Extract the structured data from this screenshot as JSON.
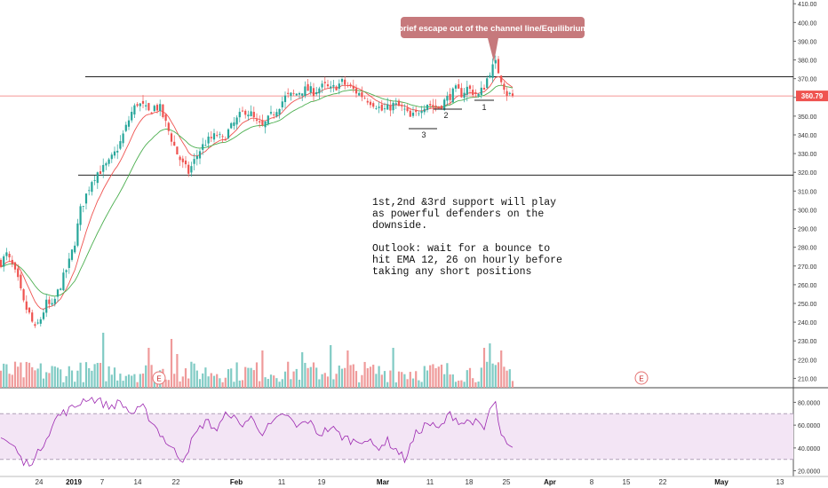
{
  "chart_data": {
    "type": "candlestick",
    "price_axis": {
      "ylim": [
        205,
        412
      ],
      "ticks": [
        "410.00",
        "400.00",
        "390.00",
        "380.00",
        "370.00",
        "360.00",
        "350.00",
        "340.00",
        "330.00",
        "320.00",
        "310.00",
        "300.00",
        "290.00",
        "280.00",
        "270.00",
        "260.00",
        "250.00",
        "240.00",
        "230.00",
        "220.00",
        "210.00"
      ],
      "tick_values": [
        410,
        400,
        390,
        380,
        370,
        360,
        350,
        340,
        330,
        320,
        310,
        300,
        290,
        280,
        270,
        260,
        250,
        240,
        230,
        220,
        210
      ]
    },
    "current_price": {
      "label": "360.79",
      "value": 360.79,
      "color": "#ef5350"
    },
    "horizontal_levels": [
      371,
      318.5
    ],
    "x_axis": {
      "labels": [
        "24",
        "2019",
        "7",
        "14",
        "22",
        "Feb",
        "11",
        "19",
        "Mar",
        "11",
        "18",
        "25",
        "Apr",
        "8",
        "15",
        "22",
        "May",
        "13"
      ],
      "bold_labels": [
        "2019",
        "Feb",
        "Mar",
        "Apr",
        "May"
      ]
    },
    "price_key_points": [
      [
        0,
        272
      ],
      [
        2,
        276
      ],
      [
        4,
        270
      ],
      [
        6,
        262
      ],
      [
        8,
        250
      ],
      [
        10,
        244
      ],
      [
        12,
        236
      ],
      [
        14,
        242
      ],
      [
        16,
        250
      ],
      [
        18,
        248
      ],
      [
        20,
        256
      ],
      [
        22,
        264
      ],
      [
        24,
        272
      ],
      [
        26,
        283
      ],
      [
        28,
        300
      ],
      [
        30,
        308
      ],
      [
        32,
        316
      ],
      [
        34,
        320
      ],
      [
        36,
        322
      ],
      [
        38,
        325
      ],
      [
        40,
        330
      ],
      [
        42,
        336
      ],
      [
        44,
        344
      ],
      [
        46,
        352
      ],
      [
        48,
        357
      ],
      [
        50,
        355
      ],
      [
        52,
        352
      ],
      [
        54,
        355
      ],
      [
        56,
        354
      ],
      [
        58,
        346
      ],
      [
        60,
        338
      ],
      [
        62,
        330
      ],
      [
        64,
        324
      ],
      [
        66,
        320
      ],
      [
        68,
        326
      ],
      [
        70,
        332
      ],
      [
        72,
        336
      ],
      [
        74,
        338
      ],
      [
        76,
        340
      ],
      [
        78,
        337
      ],
      [
        80,
        342
      ],
      [
        82,
        346
      ],
      [
        84,
        350
      ],
      [
        86,
        353
      ],
      [
        88,
        351
      ],
      [
        90,
        346
      ],
      [
        92,
        344
      ],
      [
        94,
        348
      ],
      [
        96,
        352
      ],
      [
        98,
        356
      ],
      [
        100,
        360
      ],
      [
        102,
        361
      ],
      [
        104,
        362
      ],
      [
        106,
        364
      ],
      [
        108,
        364
      ],
      [
        110,
        363
      ],
      [
        112,
        365
      ],
      [
        114,
        366
      ],
      [
        116,
        364
      ],
      [
        118,
        366
      ],
      [
        120,
        368
      ],
      [
        122,
        366
      ],
      [
        124,
        364
      ],
      [
        126,
        362
      ],
      [
        128,
        360
      ],
      [
        130,
        358
      ],
      [
        132,
        356
      ],
      [
        134,
        353
      ],
      [
        136,
        354
      ],
      [
        138,
        356
      ],
      [
        140,
        355
      ],
      [
        142,
        353
      ],
      [
        144,
        349
      ],
      [
        146,
        351
      ],
      [
        148,
        355
      ],
      [
        150,
        357
      ],
      [
        152,
        355
      ],
      [
        154,
        355
      ],
      [
        156,
        358
      ],
      [
        158,
        361
      ],
      [
        160,
        364
      ],
      [
        162,
        362
      ],
      [
        164,
        365
      ],
      [
        166,
        363
      ],
      [
        168,
        361
      ],
      [
        170,
        366
      ],
      [
        172,
        374
      ],
      [
        174,
        378
      ],
      [
        176,
        370
      ],
      [
        178,
        362
      ],
      [
        180,
        361
      ]
    ],
    "volume": {
      "seed": 7,
      "spikes": [
        [
          36,
          62
        ],
        [
          52,
          45
        ],
        [
          60,
          55
        ],
        [
          62,
          38
        ],
        [
          92,
          42
        ],
        [
          106,
          40
        ],
        [
          116,
          48
        ],
        [
          122,
          42
        ],
        [
          138,
          45
        ],
        [
          170,
          45
        ],
        [
          172,
          50
        ],
        [
          176,
          42
        ]
      ]
    },
    "rsi": {
      "labels": [
        "80.0000",
        "60.0000",
        "40.0000",
        "20.0000"
      ],
      "values": [
        80,
        60,
        40,
        20
      ],
      "band_upper": 70,
      "band_lower": 30,
      "ylim": [
        15,
        92
      ],
      "key_points": [
        [
          0,
          50
        ],
        [
          5,
          40
        ],
        [
          8,
          26
        ],
        [
          12,
          30
        ],
        [
          16,
          50
        ],
        [
          20,
          68
        ],
        [
          26,
          76
        ],
        [
          30,
          84
        ],
        [
          34,
          82
        ],
        [
          38,
          76
        ],
        [
          42,
          80
        ],
        [
          46,
          70
        ],
        [
          50,
          75
        ],
        [
          54,
          60
        ],
        [
          58,
          46
        ],
        [
          62,
          34
        ],
        [
          64,
          30
        ],
        [
          68,
          50
        ],
        [
          72,
          64
        ],
        [
          76,
          56
        ],
        [
          80,
          72
        ],
        [
          84,
          60
        ],
        [
          88,
          66
        ],
        [
          92,
          54
        ],
        [
          96,
          62
        ],
        [
          100,
          70
        ],
        [
          104,
          58
        ],
        [
          108,
          64
        ],
        [
          112,
          52
        ],
        [
          116,
          58
        ],
        [
          120,
          50
        ],
        [
          124,
          46
        ],
        [
          128,
          48
        ],
        [
          132,
          40
        ],
        [
          136,
          46
        ],
        [
          140,
          36
        ],
        [
          142,
          30
        ],
        [
          146,
          52
        ],
        [
          150,
          62
        ],
        [
          154,
          56
        ],
        [
          158,
          70
        ],
        [
          162,
          62
        ],
        [
          166,
          64
        ],
        [
          170,
          56
        ],
        [
          172,
          74
        ],
        [
          174,
          78
        ],
        [
          176,
          50
        ],
        [
          178,
          42
        ],
        [
          180,
          38
        ]
      ]
    },
    "earnings_markers": [
      "E",
      "E"
    ],
    "support_labels": [
      "1",
      "2",
      "3"
    ],
    "callout": "brief escape out of the channel line/Equilibrium",
    "annotation_lines": [
      "1st,2nd &3rd support will play",
      "as powerful defenders on the",
      "downside.",
      "",
      "Outlook: wait for a bounce to",
      "hit EMA 12, 26 on hourly before",
      "taking any short positions"
    ],
    "colors": {
      "up": "#26a69a",
      "down": "#ef5350",
      "vol_up": "#80cbc4",
      "vol_down": "#ef9a9a",
      "ema_fast": "#ef5350",
      "ema_slow": "#4caf50",
      "rsi_line": "#9c27b0",
      "rsi_band": "#f3e5f5",
      "callout_bg": "#c6797c",
      "level_line": "#222222"
    }
  }
}
